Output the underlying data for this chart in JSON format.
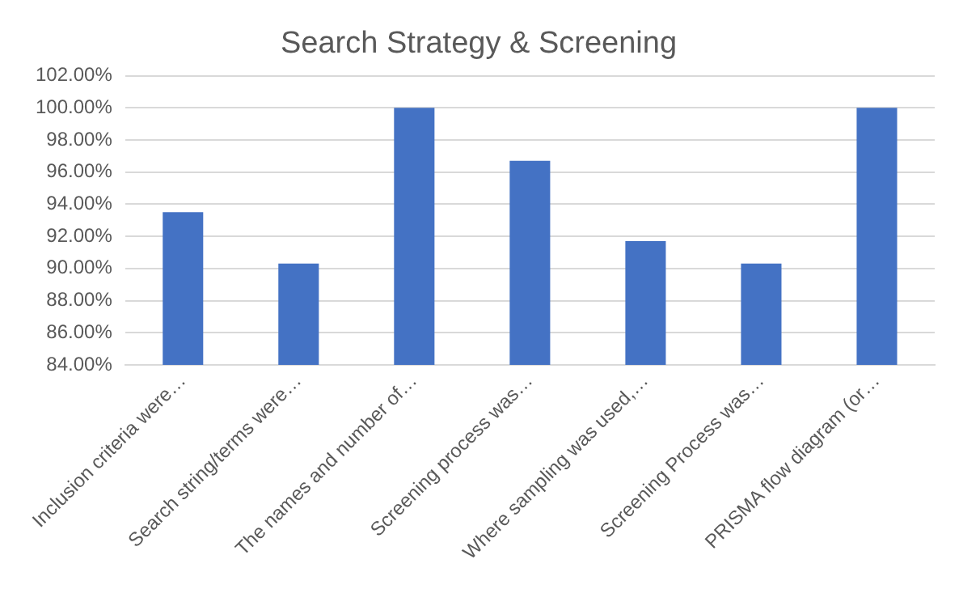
{
  "chart_data": {
    "type": "bar",
    "title": "Search Strategy & Screening",
    "categories": [
      "Inclusion criteria were…",
      "Search string/terms were…",
      "The names and number of…",
      "Screening process was…",
      "Where sampling was used,…",
      "Screening Process was…",
      "PRISMA flow diagram (or…"
    ],
    "values": [
      93.5,
      90.3,
      100,
      96.7,
      91.7,
      90.3,
      100
    ],
    "color": "#4472c4",
    "ylim": [
      84,
      102
    ],
    "yticks": [
      {
        "value": 84,
        "label": "84.00%"
      },
      {
        "value": 86,
        "label": "86.00%"
      },
      {
        "value": 88,
        "label": "88.00%"
      },
      {
        "value": 90,
        "label": "90.00%"
      },
      {
        "value": 92,
        "label": "92.00%"
      },
      {
        "value": 94,
        "label": "94.00%"
      },
      {
        "value": 96,
        "label": "96.00%"
      },
      {
        "value": 98,
        "label": "98.00%"
      },
      {
        "value": 100,
        "label": "100.00%"
      },
      {
        "value": 102,
        "label": "102.00%"
      }
    ],
    "grid": "y",
    "legend": false
  }
}
